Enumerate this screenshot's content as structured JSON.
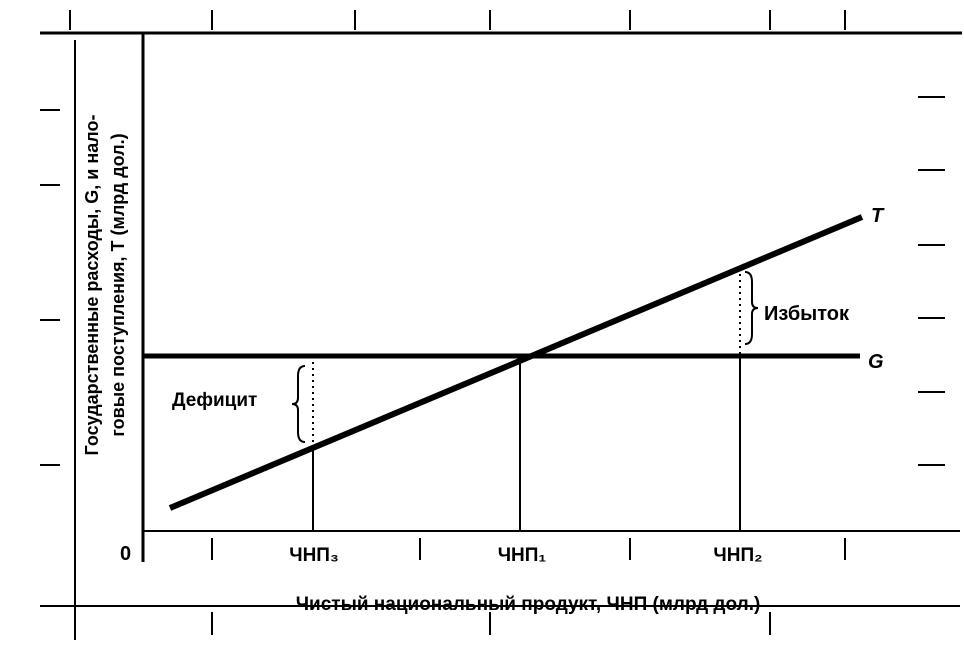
{
  "y_axis": {
    "line1": "Государственные расходы, G, и нало-",
    "line2": "говые поступления, T (млрд дол.)"
  },
  "x_axis": {
    "label": "Чистый национальный продукт, ЧНП (млрд дол.)",
    "origin": "0",
    "ticks": [
      "ЧНП₃",
      "ЧНП₁",
      "ЧНП₂"
    ]
  },
  "lines": {
    "t": "T",
    "g": "G"
  },
  "annotations": {
    "deficit": "Дефицит",
    "surplus": "Избыток"
  }
}
